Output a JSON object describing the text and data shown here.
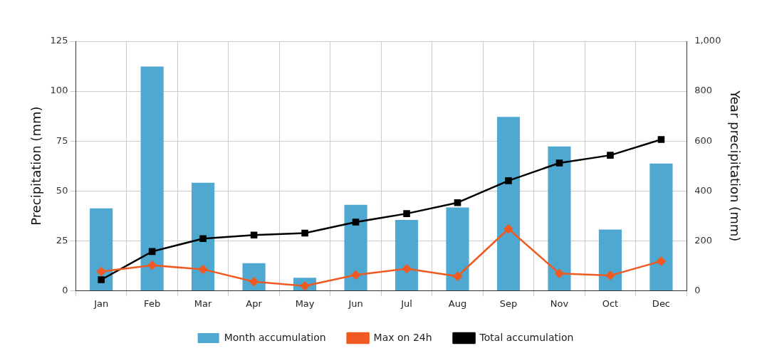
{
  "chart_data": {
    "type": "bar",
    "xlabel": null,
    "ylabel": "Precipitation (mm)",
    "y2label": "Year precipitation (mm)",
    "categories": [
      "Jan",
      "Feb",
      "Mar",
      "Apr",
      "May",
      "Jun",
      "Jul",
      "Aug",
      "Sep",
      "Nov",
      "Oct",
      "Dec"
    ],
    "series": [
      {
        "name": "Month accumulation",
        "color": "#4fa8d0",
        "values": [
          41.3,
          112.3,
          54.1,
          13.8,
          6.5,
          43,
          35.5,
          41.7,
          87.1,
          72.3,
          30.6,
          63.7
        ]
      },
      {
        "name": "Max on 24h",
        "type": "line",
        "color": "#f05a22",
        "marker": "diamond",
        "values": [
          9.6,
          12.7,
          10.7,
          4.5,
          2.4,
          7.9,
          11,
          7.2,
          31,
          8.6,
          7.6,
          14.8
        ]
      },
      {
        "name": "Total accumulation",
        "type": "line",
        "color": "#000000",
        "marker": "square",
        "axis": "y2",
        "values": [
          44,
          157,
          209,
          223,
          231,
          275,
          309,
          353,
          441,
          512,
          543,
          606
        ]
      }
    ],
    "ylim": [
      0,
      125
    ],
    "yticks": [
      0,
      25,
      50,
      75,
      100,
      125
    ],
    "y2lim": [
      0,
      1000
    ],
    "y2ticks": [
      0,
      200,
      400,
      600,
      800,
      {
        "value": 1000,
        "label": "1,000"
      }
    ],
    "grid": true,
    "legend": "bottom"
  }
}
